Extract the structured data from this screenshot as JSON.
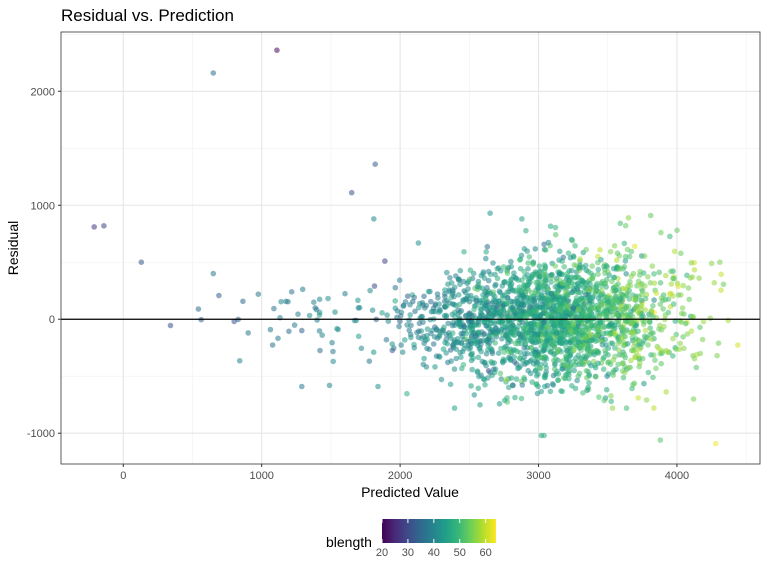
{
  "chart_data": {
    "type": "scatter",
    "title": "Residual vs. Prediction",
    "xlabel": "Predicted Value",
    "ylabel": "Residual",
    "xlim": [
      -450,
      4600
    ],
    "ylim": [
      -1270,
      2520
    ],
    "x_ticks": [
      0,
      1000,
      2000,
      3000,
      4000
    ],
    "y_ticks": [
      -1000,
      0,
      1000,
      2000
    ],
    "grid": true,
    "reference_line": {
      "y": 0,
      "color": "#000000"
    },
    "color_variable": "blength",
    "color_scale": {
      "name": "viridis",
      "range": [
        20,
        64
      ],
      "ticks": [
        20,
        30,
        40,
        50,
        60
      ],
      "stops": [
        "#440154",
        "#482878",
        "#3e4a89",
        "#31688e",
        "#26828e",
        "#1f9e89",
        "#35b779",
        "#6ece58",
        "#b5de2b",
        "#fde725"
      ]
    },
    "legend_position": "bottom",
    "points": [
      {
        "x": 1110,
        "y": 2360,
        "c": 21
      },
      {
        "x": 650,
        "y": 2160,
        "c": 36
      },
      {
        "x": 1820,
        "y": 1360,
        "c": 33
      },
      {
        "x": 1650,
        "y": 1110,
        "c": 31
      },
      {
        "x": 1810,
        "y": 880,
        "c": 40
      },
      {
        "x": -210,
        "y": 810,
        "c": 27
      },
      {
        "x": -140,
        "y": 820,
        "c": 29
      },
      {
        "x": 130,
        "y": 500,
        "c": 32
      },
      {
        "x": 1890,
        "y": 510,
        "c": 29
      },
      {
        "x": 650,
        "y": 400,
        "c": 38
      },
      {
        "x": 1290,
        "y": -590,
        "c": 38
      },
      {
        "x": 1490,
        "y": -580,
        "c": 40
      },
      {
        "x": 1840,
        "y": -590,
        "c": 42
      },
      {
        "x": 3020,
        "y": -1020,
        "c": 46
      },
      {
        "x": 3040,
        "y": -1020,
        "c": 47
      },
      {
        "x": 3880,
        "y": -1060,
        "c": 52
      },
      {
        "x": 4280,
        "y": -1090,
        "c": 63
      },
      {
        "x": 4370,
        "y": -10,
        "c": 58
      },
      {
        "x": 4310,
        "y": 500,
        "c": 55
      },
      {
        "x": 4250,
        "y": 490,
        "c": 56
      },
      {
        "x": 4000,
        "y": 780,
        "c": 53
      },
      {
        "x": 3810,
        "y": 910,
        "c": 53
      },
      {
        "x": 3650,
        "y": 890,
        "c": 56
      },
      {
        "x": 2650,
        "y": 930,
        "c": 43
      },
      {
        "x": 2880,
        "y": 880,
        "c": 45
      },
      {
        "x": 4120,
        "y": -700,
        "c": 55
      },
      {
        "x": 3720,
        "y": -690,
        "c": 60
      },
      {
        "x": 4290,
        "y": -320,
        "c": 55
      },
      {
        "x": 4300,
        "y": -210,
        "c": 54
      },
      {
        "x": 4270,
        "y": 320,
        "c": 57
      },
      {
        "x": 4160,
        "y": 360,
        "c": 56
      }
    ],
    "cloud": [
      {
        "cx": 3150,
        "cy": 0,
        "sx": 330,
        "sy": 280,
        "n": 1650,
        "c": 47,
        "sc": 6
      },
      {
        "cx": 2500,
        "cy": -20,
        "sx": 230,
        "sy": 230,
        "n": 300,
        "c": 42,
        "sc": 5
      },
      {
        "cx": 3750,
        "cy": 40,
        "sx": 230,
        "sy": 300,
        "n": 230,
        "c": 54,
        "sc": 5
      },
      {
        "cx": 2100,
        "cy": -20,
        "sx": 170,
        "sy": 180,
        "n": 60,
        "c": 40,
        "sc": 5
      },
      {
        "cx": 1350,
        "cy": 0,
        "sx": 320,
        "sy": 150,
        "n": 55,
        "c": 39,
        "sc": 4
      }
    ]
  }
}
